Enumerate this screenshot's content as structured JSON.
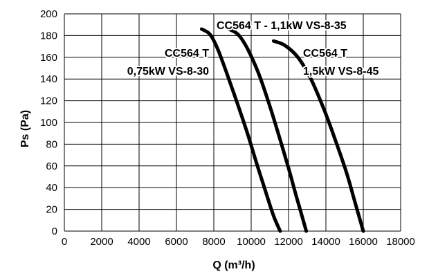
{
  "chart_data": {
    "type": "line",
    "xlabel": "Q (m³/h)",
    "ylabel": "Ps (Pa)",
    "xlim": [
      0,
      18000
    ],
    "ylim": [
      0,
      200
    ],
    "x_ticks": [
      0,
      2000,
      4000,
      6000,
      8000,
      10000,
      12000,
      14000,
      16000,
      18000
    ],
    "y_ticks": [
      0,
      20,
      40,
      60,
      80,
      100,
      120,
      140,
      160,
      180,
      200
    ],
    "grid": true,
    "legend": "none",
    "line_color": "#000000",
    "series": [
      {
        "name_lines": [
          "CC564 T",
          "0,75kW VS-8-30"
        ],
        "points": [
          {
            "x": 7350,
            "y": 186
          },
          {
            "x": 7800,
            "y": 181
          },
          {
            "x": 8200,
            "y": 168
          },
          {
            "x": 8700,
            "y": 145
          },
          {
            "x": 9250,
            "y": 118
          },
          {
            "x": 9800,
            "y": 90
          },
          {
            "x": 10300,
            "y": 62
          },
          {
            "x": 10800,
            "y": 35
          },
          {
            "x": 11200,
            "y": 14
          },
          {
            "x": 11550,
            "y": 0
          }
        ]
      },
      {
        "name_lines": [
          "CC564 T - 1,1kW VS-8-35"
        ],
        "points": [
          {
            "x": 8800,
            "y": 186
          },
          {
            "x": 9300,
            "y": 181
          },
          {
            "x": 9800,
            "y": 168
          },
          {
            "x": 10400,
            "y": 145
          },
          {
            "x": 11000,
            "y": 115
          },
          {
            "x": 11500,
            "y": 87
          },
          {
            "x": 12000,
            "y": 58
          },
          {
            "x": 12400,
            "y": 33
          },
          {
            "x": 12750,
            "y": 12
          },
          {
            "x": 12950,
            "y": 0
          }
        ]
      },
      {
        "name_lines": [
          "CC564 T",
          "1,5kW VS-8-45"
        ],
        "points": [
          {
            "x": 11200,
            "y": 175
          },
          {
            "x": 11800,
            "y": 171
          },
          {
            "x": 12500,
            "y": 160
          },
          {
            "x": 13200,
            "y": 140
          },
          {
            "x": 13900,
            "y": 112
          },
          {
            "x": 14500,
            "y": 84
          },
          {
            "x": 15100,
            "y": 54
          },
          {
            "x": 15500,
            "y": 30
          },
          {
            "x": 15800,
            "y": 12
          },
          {
            "x": 16000,
            "y": 0
          }
        ]
      }
    ]
  }
}
